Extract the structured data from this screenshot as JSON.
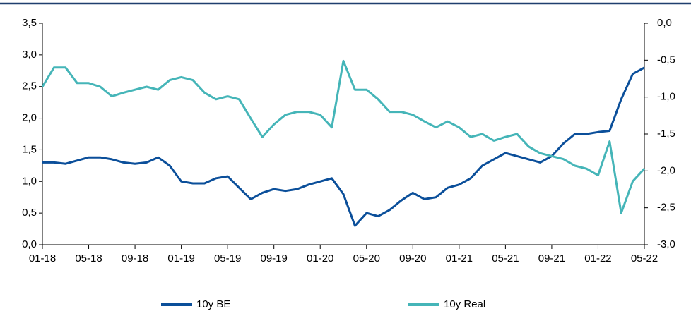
{
  "chart_data": {
    "type": "line",
    "x": [
      "01-18",
      "02-18",
      "03-18",
      "04-18",
      "05-18",
      "06-18",
      "07-18",
      "08-18",
      "09-18",
      "10-18",
      "11-18",
      "12-18",
      "01-19",
      "02-19",
      "03-19",
      "04-19",
      "05-19",
      "06-19",
      "07-19",
      "08-19",
      "09-19",
      "10-19",
      "11-19",
      "12-19",
      "01-20",
      "02-20",
      "03-20",
      "04-20",
      "05-20",
      "06-20",
      "07-20",
      "08-20",
      "09-20",
      "10-20",
      "11-20",
      "12-20",
      "01-21",
      "02-21",
      "03-21",
      "04-21",
      "05-21",
      "06-21",
      "07-21",
      "08-21",
      "09-21",
      "10-21",
      "11-21",
      "12-21",
      "01-22",
      "02-22",
      "03-22",
      "04-22",
      "05-22"
    ],
    "xticks": [
      "01-18",
      "05-18",
      "09-18",
      "01-19",
      "05-19",
      "09-19",
      "01-20",
      "05-20",
      "09-20",
      "01-21",
      "05-21",
      "09-21",
      "01-22",
      "05-22"
    ],
    "series": [
      {
        "name": "10y BE",
        "color": "#0b4f9a",
        "values": [
          1.3,
          1.3,
          1.28,
          1.33,
          1.38,
          1.38,
          1.35,
          1.3,
          1.28,
          1.3,
          1.38,
          1.25,
          1.0,
          0.97,
          0.97,
          1.05,
          1.08,
          0.9,
          0.72,
          0.82,
          0.88,
          0.85,
          0.88,
          0.95,
          1.0,
          1.05,
          0.8,
          0.3,
          0.5,
          0.45,
          0.55,
          0.7,
          0.82,
          0.72,
          0.75,
          0.9,
          0.95,
          1.05,
          1.25,
          1.35,
          1.45,
          1.4,
          1.35,
          1.3,
          1.4,
          1.6,
          1.75,
          1.75,
          1.78,
          1.8,
          2.3,
          2.7,
          2.8
        ]
      },
      {
        "name": "10y Real",
        "color": "#45b5b8",
        "axis": "y2",
        "values": [
          -0.86,
          -0.6,
          -0.6,
          -0.81,
          -0.81,
          -0.86,
          -0.99,
          -0.94,
          -0.9,
          -0.86,
          -0.9,
          -0.77,
          -0.73,
          -0.77,
          -0.94,
          -1.03,
          -0.99,
          -1.03,
          -1.29,
          -1.54,
          -1.37,
          -1.24,
          -1.2,
          -1.2,
          -1.24,
          -1.41,
          -0.51,
          -0.9,
          -0.9,
          -1.03,
          -1.2,
          -1.2,
          -1.24,
          -1.33,
          -1.41,
          -1.33,
          -1.41,
          -1.54,
          -1.5,
          -1.59,
          -1.54,
          -1.5,
          -1.67,
          -1.76,
          -1.8,
          -1.84,
          -1.93,
          -1.97,
          -2.06,
          -1.6,
          -2.57,
          -2.14,
          -1.97
        ]
      }
    ],
    "ylim": [
      0,
      3.5
    ],
    "yticks": [
      {
        "value": 0,
        "label": "0,0"
      },
      {
        "value": 0.5,
        "label": "0,5"
      },
      {
        "value": 1,
        "label": "1,0"
      },
      {
        "value": 1.5,
        "label": "1,5"
      },
      {
        "value": 2,
        "label": "2,0"
      },
      {
        "value": 2.5,
        "label": "2,5"
      },
      {
        "value": 3,
        "label": "3,0"
      },
      {
        "value": 3.5,
        "label": "3,5"
      }
    ],
    "y2lim": [
      -3,
      0
    ],
    "y2ticks": [
      {
        "value": -3,
        "label": "-3,0"
      },
      {
        "value": -2.5,
        "label": "-2,5"
      },
      {
        "value": -2,
        "label": "-2,0"
      },
      {
        "value": -1.5,
        "label": "-1,5"
      },
      {
        "value": -1,
        "label": "-1,0"
      },
      {
        "value": -0.5,
        "label": "-0,5"
      },
      {
        "value": 0,
        "label": "0,0"
      }
    ]
  }
}
